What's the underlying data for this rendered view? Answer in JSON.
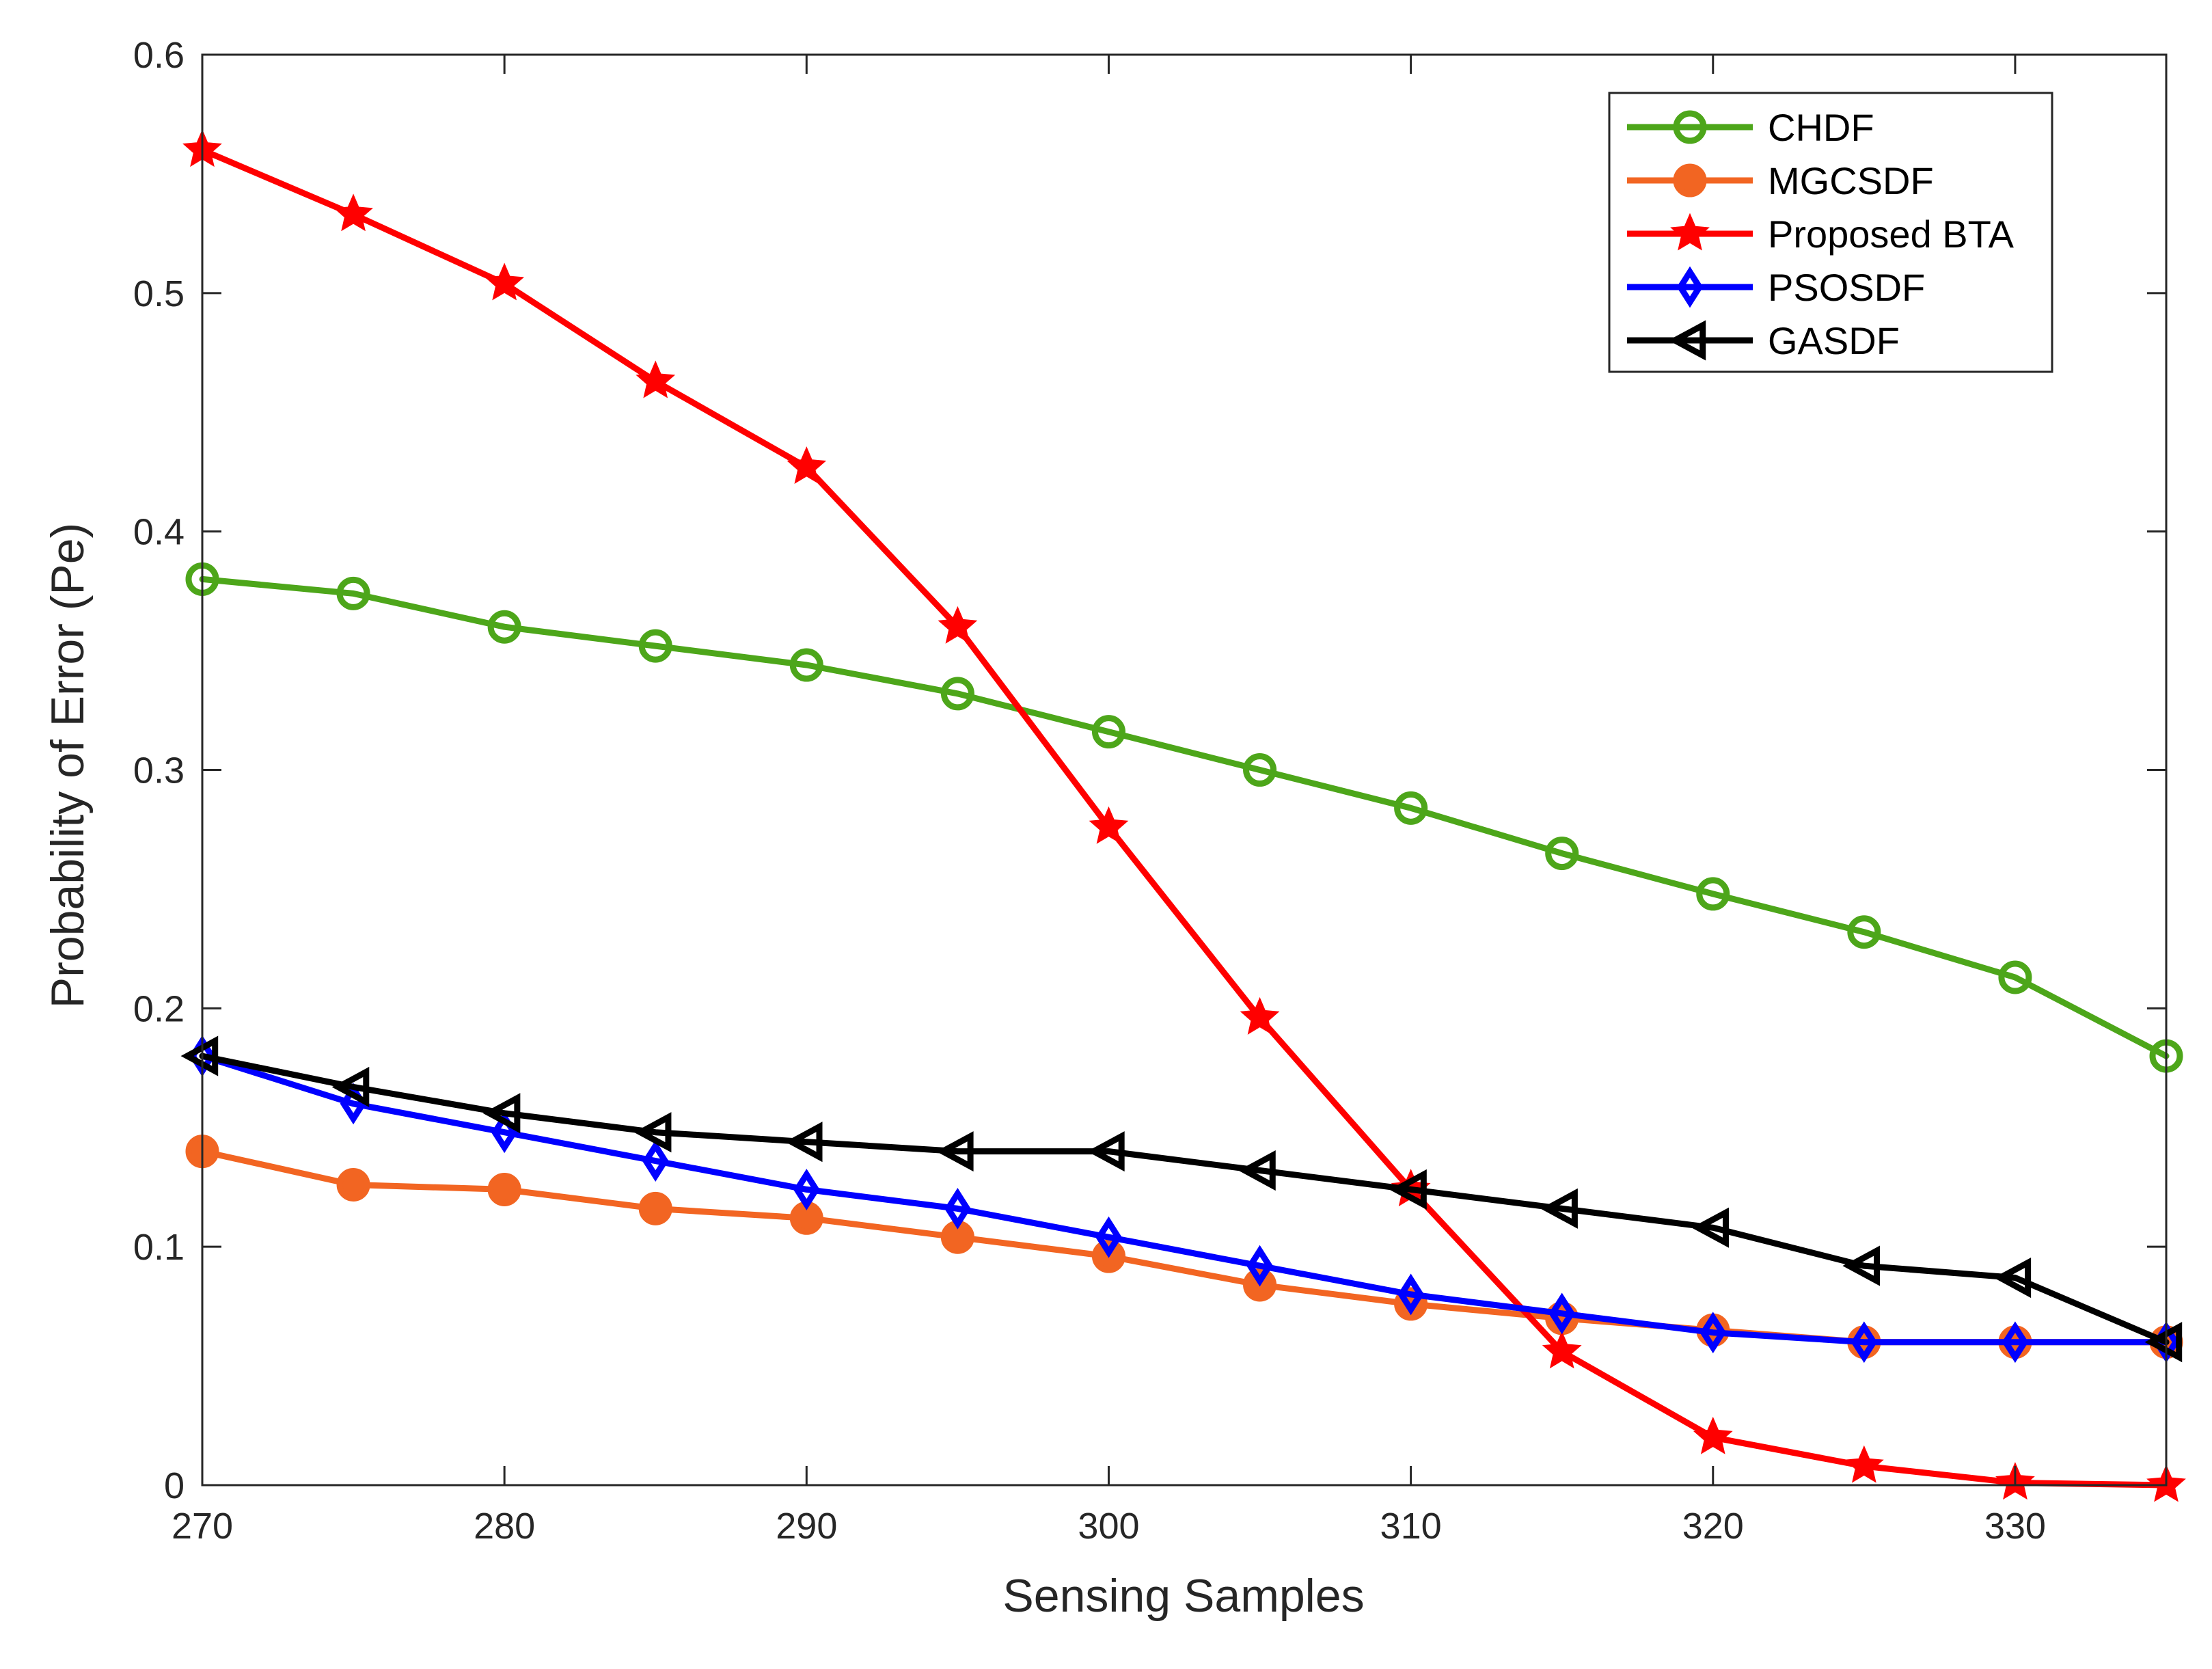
{
  "chart_data": {
    "type": "line",
    "title": "",
    "xlabel": "Sensing Samples",
    "ylabel": "Probability of Error (Pe)",
    "xlim": [
      270,
      335
    ],
    "ylim": [
      0,
      0.6
    ],
    "x_ticks": [
      270,
      280,
      290,
      300,
      310,
      320,
      330
    ],
    "x_tick_labels": [
      "270",
      "280",
      "290",
      "300",
      "310",
      "320",
      "330"
    ],
    "y_ticks": [
      0,
      0.1,
      0.2,
      0.3,
      0.4,
      0.5,
      0.6
    ],
    "y_tick_labels": [
      "0",
      "0.1",
      "0.2",
      "0.3",
      "0.4",
      "0.5",
      "0.6"
    ],
    "grid": false,
    "legend_position": "top-right",
    "x": [
      270,
      275,
      280,
      285,
      290,
      295,
      300,
      305,
      310,
      315,
      320,
      325,
      330,
      335
    ],
    "series": [
      {
        "name": "CHDF",
        "color": "#4da61a",
        "marker": "circle",
        "values": [
          0.38,
          0.374,
          0.36,
          0.352,
          0.344,
          0.332,
          0.316,
          0.3,
          0.284,
          0.265,
          0.248,
          0.232,
          0.213,
          0.18
        ]
      },
      {
        "name": "MGCSDF",
        "color": "#f26522",
        "marker": "filled-circle",
        "values": [
          0.14,
          0.126,
          0.124,
          0.116,
          0.112,
          0.104,
          0.096,
          0.084,
          0.076,
          0.07,
          0.065,
          0.06,
          0.06,
          0.06
        ]
      },
      {
        "name": "Proposed BTA",
        "color": "#ff0000",
        "marker": "star",
        "values": [
          0.56,
          0.533,
          0.504,
          0.463,
          0.427,
          0.36,
          0.276,
          0.196,
          0.124,
          0.056,
          0.02,
          0.008,
          0.001,
          0.0
        ]
      },
      {
        "name": "PSOSDF",
        "color": "#0000ff",
        "marker": "diamond",
        "values": [
          0.18,
          0.16,
          0.148,
          0.136,
          0.124,
          0.116,
          0.104,
          0.092,
          0.08,
          0.072,
          0.064,
          0.06,
          0.06,
          0.06
        ]
      },
      {
        "name": "GASDF",
        "color": "#000000",
        "marker": "triangle-left",
        "values": [
          0.18,
          0.167,
          0.156,
          0.148,
          0.144,
          0.14,
          0.14,
          0.132,
          0.124,
          0.116,
          0.108,
          0.092,
          0.087,
          0.06
        ]
      }
    ]
  }
}
